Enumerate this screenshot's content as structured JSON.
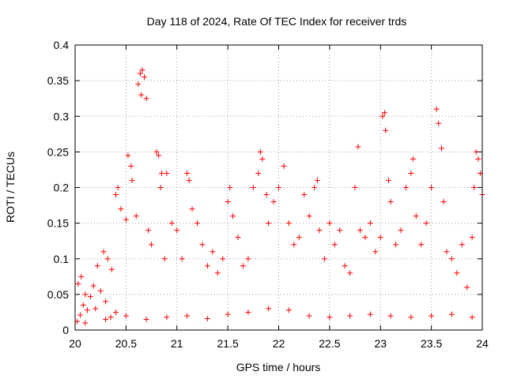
{
  "chart_data": {
    "type": "scatter",
    "title": "Day 118 of 2024, Rate Of TEC Index for receiver trds",
    "xlabel": "GPS time / hours",
    "ylabel": "ROTI / TECUs",
    "xlim": [
      20,
      24
    ],
    "ylim": [
      0,
      0.4
    ],
    "x_ticks": [
      "20",
      "20.5",
      "21",
      "21.5",
      "22",
      "22.5",
      "23",
      "23.5",
      "24"
    ],
    "y_ticks": [
      "0",
      "0.05",
      "0.1",
      "0.15",
      "0.2",
      "0.25",
      "0.3",
      "0.35",
      "0.4"
    ],
    "grid": true,
    "marker": "plus",
    "marker_color": "#ff0000",
    "series": [
      {
        "points": [
          [
            20.02,
            0.012
          ],
          [
            20.05,
            0.021
          ],
          [
            20.08,
            0.035
          ],
          [
            20.12,
            0.028
          ],
          [
            20.15,
            0.047
          ],
          [
            20.2,
            0.03
          ],
          [
            20.25,
            0.055
          ],
          [
            20.3,
            0.04
          ],
          [
            20.35,
            0.018
          ],
          [
            20.4,
            0.025
          ],
          [
            20.03,
            0.065
          ],
          [
            20.06,
            0.075
          ],
          [
            20.1,
            0.05
          ],
          [
            20.18,
            0.062
          ],
          [
            20.22,
            0.09
          ],
          [
            20.28,
            0.11
          ],
          [
            20.32,
            0.1
          ],
          [
            20.36,
            0.085
          ],
          [
            20.4,
            0.19
          ],
          [
            20.42,
            0.2
          ],
          [
            20.45,
            0.17
          ],
          [
            20.5,
            0.155
          ],
          [
            20.52,
            0.245
          ],
          [
            20.55,
            0.23
          ],
          [
            20.56,
            0.21
          ],
          [
            20.6,
            0.16
          ],
          [
            20.62,
            0.345
          ],
          [
            20.64,
            0.36
          ],
          [
            20.66,
            0.365
          ],
          [
            20.68,
            0.355
          ],
          [
            20.65,
            0.33
          ],
          [
            20.7,
            0.325
          ],
          [
            20.72,
            0.14
          ],
          [
            20.75,
            0.12
          ],
          [
            20.8,
            0.25
          ],
          [
            20.82,
            0.245
          ],
          [
            20.85,
            0.22
          ],
          [
            20.84,
            0.2
          ],
          [
            20.9,
            0.22
          ],
          [
            20.88,
            0.1
          ],
          [
            20.95,
            0.15
          ],
          [
            21.0,
            0.14
          ],
          [
            21.05,
            0.1
          ],
          [
            21.1,
            0.22
          ],
          [
            21.12,
            0.21
          ],
          [
            21.15,
            0.17
          ],
          [
            21.2,
            0.15
          ],
          [
            21.25,
            0.12
          ],
          [
            21.3,
            0.09
          ],
          [
            21.35,
            0.11
          ],
          [
            21.4,
            0.08
          ],
          [
            21.45,
            0.1
          ],
          [
            21.5,
            0.18
          ],
          [
            21.52,
            0.2
          ],
          [
            21.55,
            0.16
          ],
          [
            21.6,
            0.13
          ],
          [
            21.65,
            0.09
          ],
          [
            21.7,
            0.1
          ],
          [
            21.75,
            0.2
          ],
          [
            21.8,
            0.22
          ],
          [
            21.82,
            0.25
          ],
          [
            21.84,
            0.24
          ],
          [
            21.88,
            0.19
          ],
          [
            21.9,
            0.15
          ],
          [
            21.95,
            0.18
          ],
          [
            22.0,
            0.2
          ],
          [
            22.05,
            0.23
          ],
          [
            22.1,
            0.15
          ],
          [
            22.15,
            0.12
          ],
          [
            22.2,
            0.13
          ],
          [
            22.25,
            0.19
          ],
          [
            22.3,
            0.16
          ],
          [
            22.35,
            0.2
          ],
          [
            22.38,
            0.21
          ],
          [
            22.4,
            0.14
          ],
          [
            22.45,
            0.1
          ],
          [
            22.5,
            0.15
          ],
          [
            22.55,
            0.12
          ],
          [
            22.6,
            0.14
          ],
          [
            22.65,
            0.09
          ],
          [
            22.7,
            0.08
          ],
          [
            22.75,
            0.2
          ],
          [
            22.78,
            0.257
          ],
          [
            22.8,
            0.14
          ],
          [
            22.85,
            0.13
          ],
          [
            22.9,
            0.15
          ],
          [
            22.95,
            0.11
          ],
          [
            23.0,
            0.13
          ],
          [
            23.02,
            0.3
          ],
          [
            23.04,
            0.305
          ],
          [
            23.05,
            0.28
          ],
          [
            23.08,
            0.21
          ],
          [
            23.1,
            0.18
          ],
          [
            23.15,
            0.12
          ],
          [
            23.2,
            0.14
          ],
          [
            23.25,
            0.2
          ],
          [
            23.3,
            0.22
          ],
          [
            23.32,
            0.24
          ],
          [
            23.35,
            0.16
          ],
          [
            23.4,
            0.12
          ],
          [
            23.45,
            0.15
          ],
          [
            23.5,
            0.2
          ],
          [
            23.55,
            0.31
          ],
          [
            23.57,
            0.29
          ],
          [
            23.6,
            0.255
          ],
          [
            23.62,
            0.18
          ],
          [
            23.65,
            0.11
          ],
          [
            23.7,
            0.1
          ],
          [
            23.75,
            0.08
          ],
          [
            23.8,
            0.12
          ],
          [
            23.85,
            0.06
          ],
          [
            23.9,
            0.13
          ],
          [
            23.92,
            0.2
          ],
          [
            23.94,
            0.25
          ],
          [
            23.96,
            0.24
          ],
          [
            23.98,
            0.22
          ],
          [
            24.0,
            0.19
          ],
          [
            20.1,
            0.01
          ],
          [
            20.3,
            0.015
          ],
          [
            20.5,
            0.02
          ],
          [
            20.7,
            0.015
          ],
          [
            20.9,
            0.018
          ],
          [
            21.1,
            0.02
          ],
          [
            21.3,
            0.016
          ],
          [
            21.5,
            0.022
          ],
          [
            21.7,
            0.025
          ],
          [
            21.9,
            0.03
          ],
          [
            22.1,
            0.028
          ],
          [
            22.3,
            0.02
          ],
          [
            22.5,
            0.018
          ],
          [
            22.7,
            0.02
          ],
          [
            22.9,
            0.022
          ],
          [
            23.1,
            0.02
          ],
          [
            23.3,
            0.018
          ],
          [
            23.5,
            0.02
          ],
          [
            23.7,
            0.022
          ],
          [
            23.9,
            0.018
          ]
        ]
      }
    ]
  }
}
